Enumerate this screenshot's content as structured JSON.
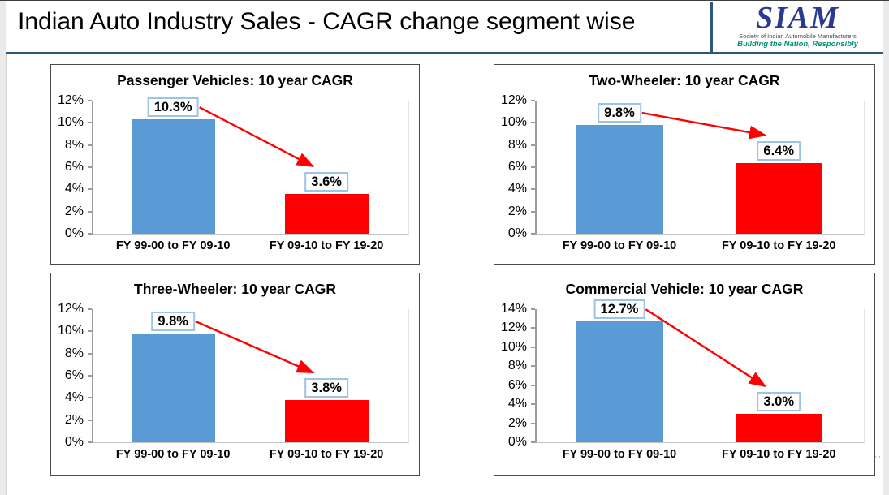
{
  "header": {
    "title": "Indian Auto Industry Sales - CAGR change segment wise",
    "logo": {
      "name": "SIAM",
      "subtitle": "Society of Indian Automobile Manufacturers",
      "tagline": "Building the Nation, Responsibly"
    }
  },
  "edge": {
    "handle": "··"
  },
  "colors": {
    "bar_prev": "#5b9bd5",
    "bar_curr": "#ff0000",
    "arrow": "#ff0000",
    "label_box_border": "#9dc3e6",
    "header_rule": "#2e5878",
    "logo_navy": "#2b3990",
    "logo_teal": "#00917c"
  },
  "chart_data": [
    {
      "type": "bar",
      "title": "Passenger Vehicles: 10 year CAGR",
      "categories": [
        "FY 99-00 to FY 09-10",
        "FY 09-10 to FY 19-20"
      ],
      "values": [
        10.3,
        3.6
      ],
      "labels": [
        "10.3%",
        "3.6%"
      ],
      "ylim": [
        0,
        12
      ],
      "ytick_step": 2,
      "yticks": [
        "0%",
        "2%",
        "4%",
        "6%",
        "8%",
        "10%",
        "12%"
      ],
      "legend": "none",
      "grid": "off",
      "annotation": "red arrow from first value label down to second value label"
    },
    {
      "type": "bar",
      "title": "Two-Wheeler: 10 year CAGR",
      "categories": [
        "FY 99-00 to FY 09-10",
        "FY 09-10 to FY 19-20"
      ],
      "values": [
        9.8,
        6.4
      ],
      "labels": [
        "9.8%",
        "6.4%"
      ],
      "ylim": [
        0,
        12
      ],
      "ytick_step": 2,
      "yticks": [
        "0%",
        "2%",
        "4%",
        "6%",
        "8%",
        "10%",
        "12%"
      ],
      "legend": "none",
      "grid": "off",
      "annotation": "red arrow from first value label down to second value label"
    },
    {
      "type": "bar",
      "title": "Three-Wheeler: 10 year CAGR",
      "categories": [
        "FY 99-00 to FY 09-10",
        "FY 09-10 to FY 19-20"
      ],
      "values": [
        9.8,
        3.8
      ],
      "labels": [
        "9.8%",
        "3.8%"
      ],
      "ylim": [
        0,
        12
      ],
      "ytick_step": 2,
      "yticks": [
        "0%",
        "2%",
        "4%",
        "6%",
        "8%",
        "10%",
        "12%"
      ],
      "legend": "none",
      "grid": "off",
      "annotation": "red arrow from first value label down to second value label"
    },
    {
      "type": "bar",
      "title": "Commercial Vehicle: 10 year CAGR",
      "categories": [
        "FY 99-00 to FY 09-10",
        "FY 09-10 to FY 19-20"
      ],
      "values": [
        12.7,
        3.0
      ],
      "labels": [
        "12.7%",
        "3.0%"
      ],
      "ylim": [
        0,
        14
      ],
      "ytick_step": 2,
      "yticks": [
        "0%",
        "2%",
        "4%",
        "6%",
        "8%",
        "10%",
        "12%",
        "14%"
      ],
      "legend": "none",
      "grid": "off",
      "annotation": "red arrow from first value label down to second value label"
    }
  ]
}
